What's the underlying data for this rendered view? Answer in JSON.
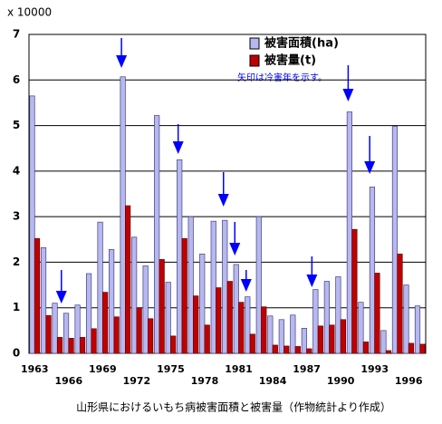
{
  "chart_data": {
    "type": "bar",
    "title": "山形県におけるいもち病被害面積と被害量（作物統計より作成）",
    "y_unit": "x 10000",
    "annotation": "矢印は冷害年を示す。",
    "categories": [
      "1963",
      null,
      null,
      "1966",
      null,
      null,
      "1969",
      null,
      null,
      "1972",
      null,
      null,
      "1975",
      null,
      null,
      "1978",
      null,
      null,
      "1981",
      null,
      null,
      "1984",
      null,
      null,
      "1987",
      null,
      null,
      "1990",
      null,
      null,
      "1993",
      null,
      null,
      "1996",
      null
    ],
    "series": [
      {
        "name": "被害面積(ha)",
        "color": "#b8b8f0",
        "values": [
          5.65,
          2.32,
          1.1,
          0.88,
          1.06,
          1.75,
          2.88,
          2.28,
          6.07,
          2.55,
          1.92,
          5.22,
          1.56,
          4.25,
          3.0,
          2.18,
          2.9,
          2.92,
          1.95,
          1.24,
          3.0,
          0.82,
          0.74,
          0.84,
          0.55,
          1.4,
          1.58,
          1.68,
          5.3,
          1.12,
          3.65,
          0.5,
          4.98,
          1.5,
          1.04
        ]
      },
      {
        "name": "被害量(t)",
        "color": "#c00000",
        "values": [
          2.52,
          0.83,
          0.35,
          0.33,
          0.35,
          0.54,
          1.34,
          0.8,
          3.24,
          1.0,
          0.76,
          2.06,
          0.38,
          2.52,
          1.26,
          0.62,
          1.44,
          1.58,
          1.12,
          0.42,
          1.02,
          0.18,
          0.16,
          0.15,
          0.1,
          0.6,
          0.62,
          0.74,
          2.72,
          0.25,
          1.76,
          0.06,
          2.18,
          0.22,
          0.2
        ]
      }
    ],
    "ylim": [
      0,
      7
    ],
    "yticks": [
      0,
      1,
      2,
      3,
      4,
      5,
      6,
      7
    ],
    "grid": true
  }
}
